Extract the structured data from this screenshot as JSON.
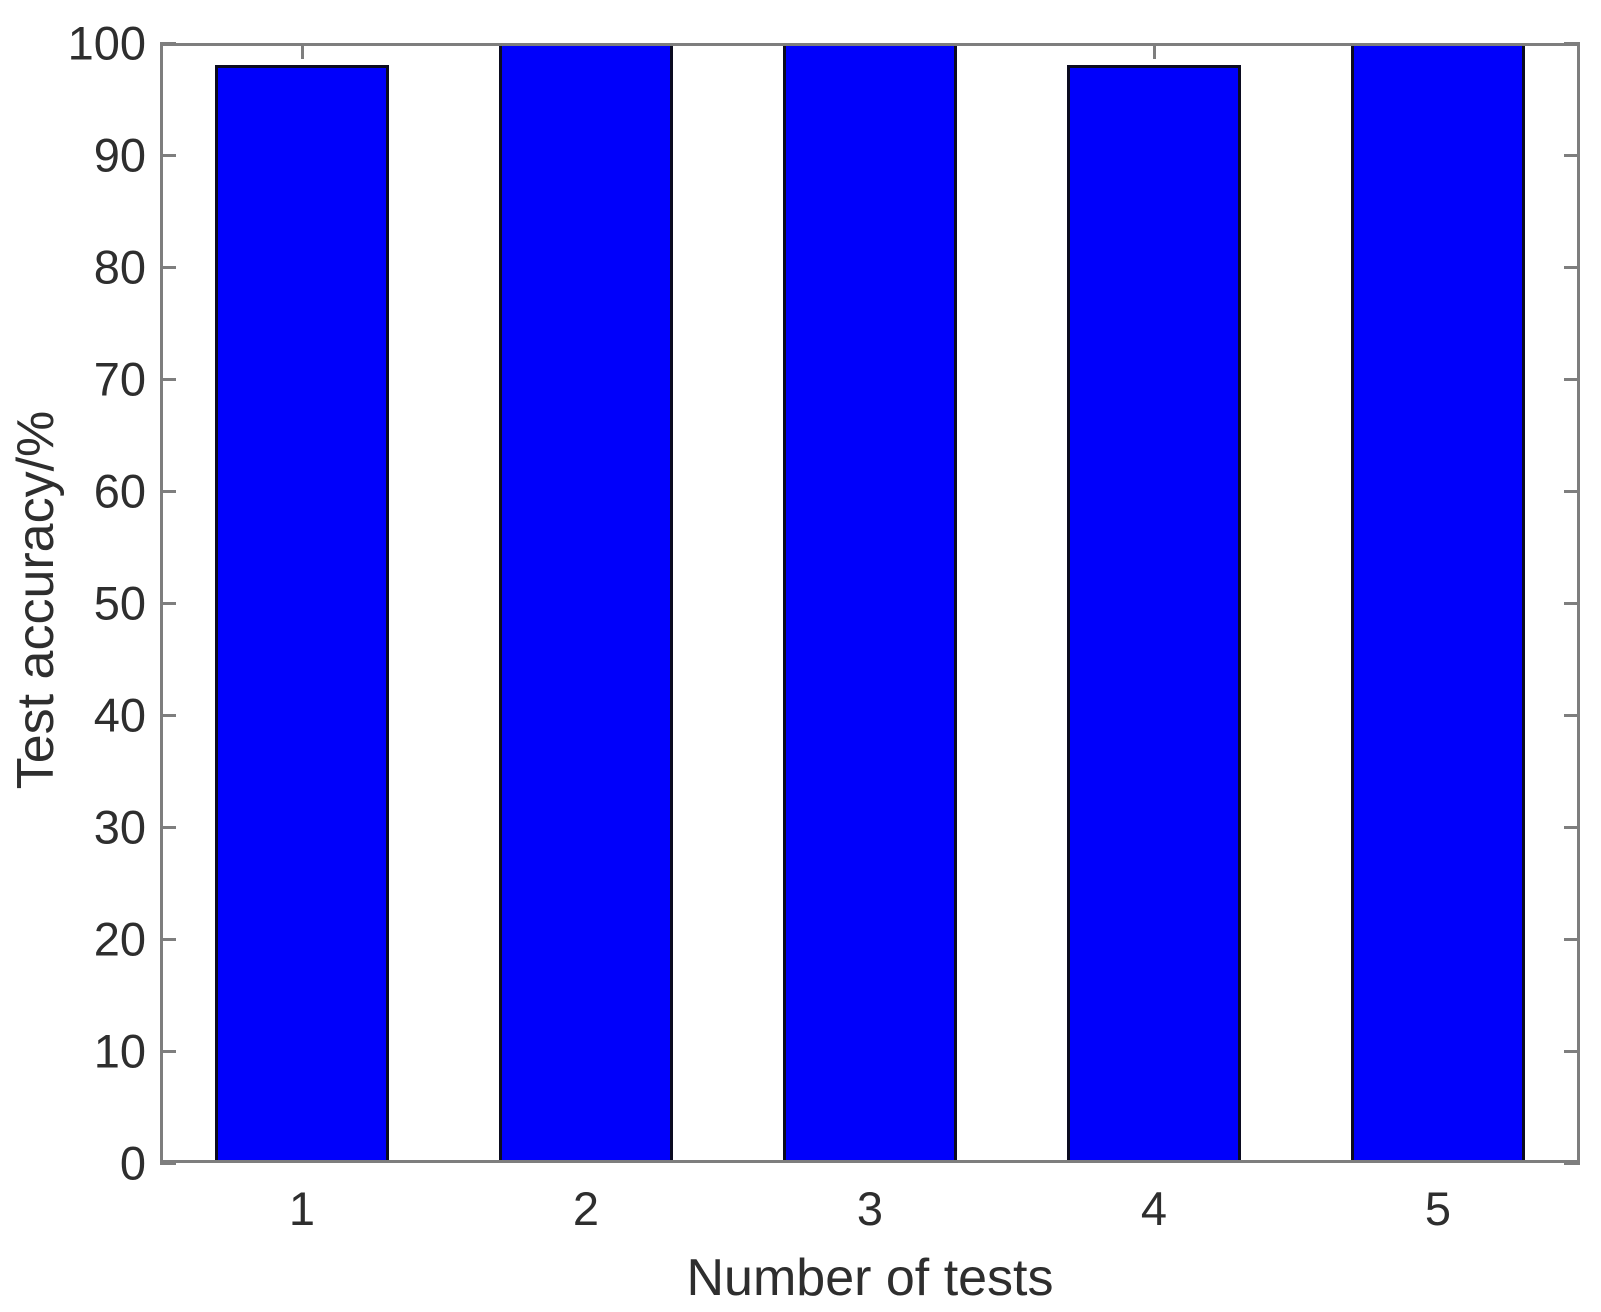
{
  "figure": {
    "background": "#ffffff"
  },
  "chart_data": {
    "type": "bar",
    "categories": [
      "1",
      "2",
      "3",
      "4",
      "5"
    ],
    "values": [
      98,
      100,
      100,
      98,
      100
    ],
    "title": "",
    "xlabel": "Number of tests",
    "ylabel": "Test accuracy/%",
    "ylim": [
      0,
      100
    ],
    "yticks": [
      0,
      10,
      20,
      30,
      40,
      50,
      60,
      70,
      80,
      90,
      100
    ],
    "grid": false,
    "legend_position": "none",
    "bar_color": "#0000fb",
    "bar_edge_color": "#0b0b20",
    "axis_color": "#7e7e7e",
    "text_color": "#2e2e2e",
    "bar_width_fraction": 0.615
  }
}
